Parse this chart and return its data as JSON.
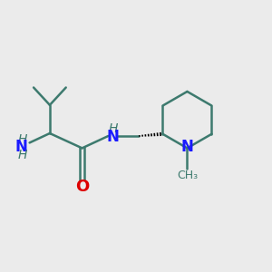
{
  "background_color": "#ebebeb",
  "bond_color": "#3d7a6e",
  "n_color": "#1a1aff",
  "o_color": "#dd0000",
  "bond_width": 1.8,
  "font_size_atom": 12,
  "font_size_h": 10,
  "xlim": [
    0,
    10
  ],
  "ylim": [
    0,
    10
  ],
  "figsize": [
    3.0,
    3.0
  ],
  "dpi": 100
}
